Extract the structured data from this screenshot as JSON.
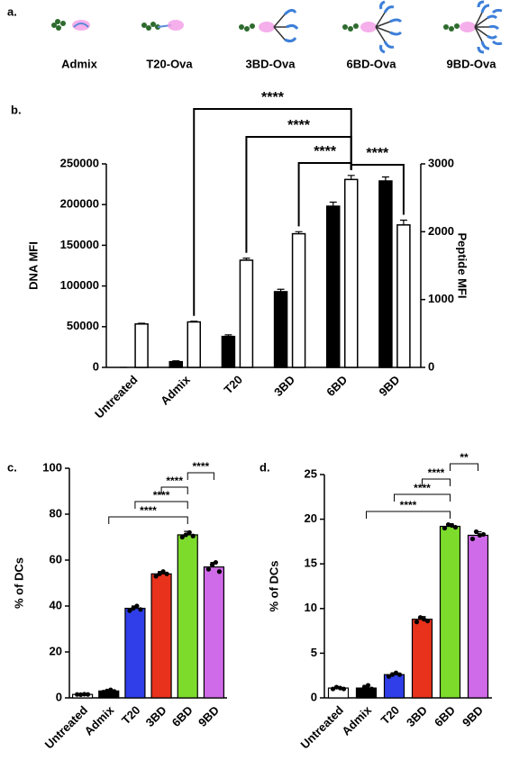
{
  "schematic": {
    "panel_label": "a.",
    "labels": [
      "Admix",
      "T20-Ova",
      "3BD-Ova",
      "6BD-Ova",
      "9BD-Ova"
    ]
  },
  "chart_data": [
    {
      "type": "bar",
      "panel_label": "b.",
      "ylabel": "DNA MFI",
      "y2label": "Peptide MFI",
      "categories": [
        "Untreated",
        "Admix",
        "T20",
        "3BD",
        "6BD",
        "9BD"
      ],
      "series": [
        {
          "color": "#000000",
          "values": [
            0,
            7000,
            38000,
            93000,
            198000,
            229000
          ],
          "errors": [
            0,
            1000,
            2000,
            3000,
            5000,
            5000
          ]
        },
        {
          "color": "#ffffff",
          "axis": "y2",
          "values": [
            640,
            670,
            1580,
            1970,
            2770,
            2100
          ],
          "errors": [
            10,
            10,
            30,
            30,
            60,
            70
          ]
        }
      ],
      "ylim": [
        0,
        250000
      ],
      "yticks": [
        0,
        50000,
        100000,
        150000,
        200000,
        250000
      ],
      "y2lim": [
        0,
        3000
      ],
      "y2ticks": [
        0,
        1000,
        2000,
        3000
      ],
      "significance": [
        {
          "label": "****",
          "from": "Admix",
          "to": "6BD"
        },
        {
          "label": "****",
          "from": "T20",
          "to": "6BD"
        },
        {
          "label": "****",
          "from": "3BD",
          "to": "6BD"
        },
        {
          "label": "****",
          "from": "6BD",
          "to": "9BD"
        }
      ]
    },
    {
      "type": "bar",
      "panel_label": "c.",
      "ylabel": "% of DCs",
      "categories": [
        "Untreated",
        "Admix",
        "T20",
        "3BD",
        "6BD",
        "9BD"
      ],
      "values": [
        1.5,
        3,
        39,
        54,
        71,
        57
      ],
      "errors": [
        0.2,
        0.5,
        1,
        1,
        1.5,
        2
      ],
      "colors": [
        "#ffffff",
        "#000000",
        "#2f3ee8",
        "#e8321c",
        "#7ddb2c",
        "#cf6ae8"
      ],
      "points": [
        [
          1.5,
          1.4,
          1.6,
          1.5
        ],
        [
          2.5,
          3,
          3.5,
          2.8
        ],
        [
          38,
          39,
          40,
          38.5
        ],
        [
          53,
          54,
          55,
          54
        ],
        [
          70,
          71,
          72,
          70.5
        ],
        [
          56,
          58,
          59,
          55
        ]
      ],
      "ylim": [
        0,
        100
      ],
      "yticks": [
        0,
        20,
        40,
        60,
        80,
        100
      ],
      "significance": [
        {
          "label": "****",
          "from": "Admix",
          "to": "6BD"
        },
        {
          "label": "****",
          "from": "T20",
          "to": "6BD"
        },
        {
          "label": "****",
          "from": "3BD",
          "to": "6BD"
        },
        {
          "label": "****",
          "from": "6BD",
          "to": "9BD"
        }
      ]
    },
    {
      "type": "bar",
      "panel_label": "d.",
      "ylabel": "% of DCs",
      "categories": [
        "Untreated",
        "Admix",
        "T20",
        "3BD",
        "6BD",
        "9BD"
      ],
      "values": [
        1.1,
        1.1,
        2.6,
        8.8,
        19.2,
        18.2
      ],
      "errors": [
        0.1,
        0.3,
        0.2,
        0.3,
        0.3,
        0.4
      ],
      "colors": [
        "#ffffff",
        "#000000",
        "#2f3ee8",
        "#e8321c",
        "#7ddb2c",
        "#cf6ae8"
      ],
      "points": [
        [
          1,
          1.2,
          1.1,
          1
        ],
        [
          0.8,
          1.2,
          1.4,
          1
        ],
        [
          2.4,
          2.6,
          2.8,
          2.6
        ],
        [
          8.5,
          9,
          8.8,
          8.6
        ],
        [
          19,
          19.4,
          19.3,
          19.1
        ],
        [
          17.8,
          18.6,
          18.2,
          18.3
        ]
      ],
      "ylim": [
        0,
        25
      ],
      "yticks": [
        0,
        5,
        10,
        15,
        20,
        25
      ],
      "significance": [
        {
          "label": "****",
          "from": "Admix",
          "to": "6BD"
        },
        {
          "label": "****",
          "from": "T20",
          "to": "6BD"
        },
        {
          "label": "****",
          "from": "3BD",
          "to": "6BD"
        },
        {
          "label": "**",
          "from": "6BD",
          "to": "9BD"
        }
      ]
    }
  ]
}
